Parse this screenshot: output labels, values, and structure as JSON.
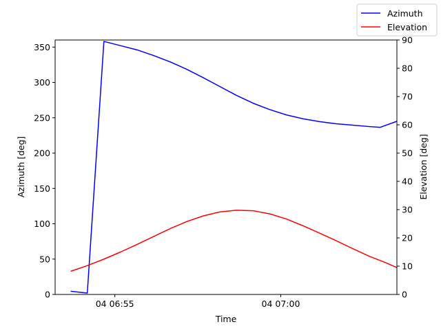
{
  "chart_data": {
    "type": "line",
    "title": "",
    "xlabel": "Time",
    "ylabel": "Azimuth [deg]",
    "y2label": "Elevation [deg]",
    "x_ticks": [
      {
        "label": "04 06:55",
        "minute": 55
      },
      {
        "label": "04 07:00",
        "minute": 60
      }
    ],
    "xlim_minutes": [
      53.2,
      63.5
    ],
    "ylim": [
      0,
      360
    ],
    "y2lim": [
      0,
      90
    ],
    "y_ticks": [
      0,
      50,
      100,
      150,
      200,
      250,
      300,
      350
    ],
    "y2_ticks": [
      0,
      10,
      20,
      30,
      40,
      50,
      60,
      70,
      80,
      90
    ],
    "grid": false,
    "legend_position": "top-right",
    "series": [
      {
        "name": "Azimuth",
        "axis": "left",
        "color": "#0000ff",
        "points": [
          [
            53.67,
            4.5
          ],
          [
            54.17,
            2.0
          ],
          [
            54.67,
            358.0
          ],
          [
            55.17,
            352.0
          ],
          [
            55.67,
            346.0
          ],
          [
            56.17,
            338.0
          ],
          [
            56.67,
            329.0
          ],
          [
            57.17,
            318.5
          ],
          [
            57.67,
            306.5
          ],
          [
            58.17,
            294.0
          ],
          [
            58.67,
            281.5
          ],
          [
            59.17,
            270.5
          ],
          [
            59.67,
            261.5
          ],
          [
            60.17,
            254.0
          ],
          [
            60.67,
            248.5
          ],
          [
            61.17,
            244.5
          ],
          [
            61.67,
            241.5
          ],
          [
            62.17,
            239.5
          ],
          [
            62.67,
            237.5
          ],
          [
            63.0,
            236.5
          ],
          [
            63.5,
            245.0
          ]
        ]
      },
      {
        "name": "Elevation",
        "axis": "right",
        "color": "#ff0000",
        "points": [
          [
            53.67,
            8.2
          ],
          [
            54.17,
            10.2
          ],
          [
            54.67,
            12.5
          ],
          [
            55.17,
            15.0
          ],
          [
            55.67,
            17.7
          ],
          [
            56.17,
            20.5
          ],
          [
            56.67,
            23.3
          ],
          [
            57.17,
            25.8
          ],
          [
            57.67,
            27.8
          ],
          [
            58.17,
            29.2
          ],
          [
            58.67,
            29.8
          ],
          [
            59.17,
            29.6
          ],
          [
            59.67,
            28.5
          ],
          [
            60.17,
            26.7
          ],
          [
            60.67,
            24.3
          ],
          [
            61.17,
            21.7
          ],
          [
            61.67,
            19.0
          ],
          [
            62.17,
            16.2
          ],
          [
            62.67,
            13.5
          ],
          [
            63.17,
            11.2
          ],
          [
            63.5,
            9.5
          ]
        ]
      }
    ]
  }
}
